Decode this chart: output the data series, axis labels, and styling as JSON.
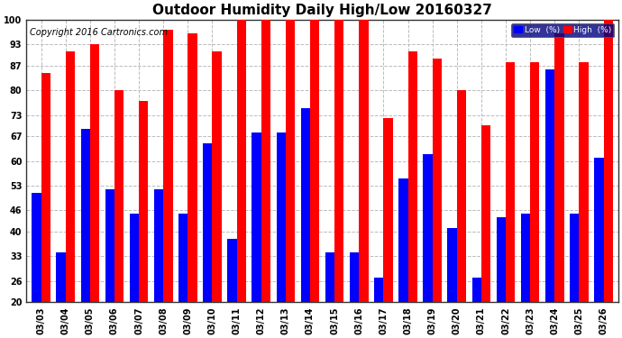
{
  "title": "Outdoor Humidity Daily High/Low 20160327",
  "copyright": "Copyright 2016 Cartronics.com",
  "categories": [
    "03/03",
    "03/04",
    "03/05",
    "03/06",
    "03/07",
    "03/08",
    "03/09",
    "03/10",
    "03/11",
    "03/12",
    "03/13",
    "03/14",
    "03/15",
    "03/16",
    "03/17",
    "03/18",
    "03/19",
    "03/20",
    "03/21",
    "03/22",
    "03/23",
    "03/24",
    "03/25",
    "03/26"
  ],
  "high_values": [
    85,
    91,
    93,
    80,
    77,
    97,
    96,
    91,
    100,
    100,
    100,
    100,
    100,
    100,
    72,
    91,
    89,
    80,
    70,
    88,
    88,
    96,
    88,
    100
  ],
  "low_values": [
    51,
    34,
    69,
    52,
    45,
    52,
    45,
    65,
    38,
    68,
    68,
    75,
    34,
    34,
    27,
    55,
    62,
    41,
    27,
    44,
    45,
    86,
    45,
    61
  ],
  "high_color": "#ff0000",
  "low_color": "#0000ff",
  "bg_color": "#ffffff",
  "grid_color": "#bbbbbb",
  "ylim": [
    20,
    100
  ],
  "ybase": 20,
  "yticks": [
    20,
    26,
    33,
    40,
    46,
    53,
    60,
    67,
    73,
    80,
    87,
    93,
    100
  ],
  "legend_low_label": "Low  (%)",
  "legend_high_label": "High  (%)",
  "title_fontsize": 11,
  "copyright_fontsize": 7,
  "tick_fontsize": 7,
  "bar_width": 0.38
}
